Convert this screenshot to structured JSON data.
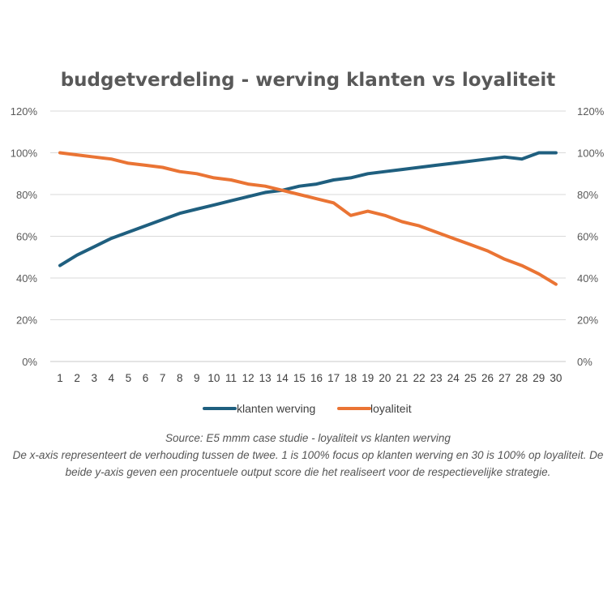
{
  "chart_data": {
    "type": "line",
    "title": "budgetverdeling - werving klanten vs loyaliteit",
    "categories": [
      "1",
      "2",
      "3",
      "4",
      "5",
      "6",
      "7",
      "8",
      "9",
      "10",
      "11",
      "12",
      "13",
      "14",
      "15",
      "16",
      "17",
      "18",
      "19",
      "20",
      "21",
      "22",
      "23",
      "24",
      "25",
      "26",
      "27",
      "28",
      "29",
      "30"
    ],
    "y_ticks": [
      "0%",
      "20%",
      "40%",
      "60%",
      "80%",
      "100%",
      "120%"
    ],
    "ylim": [
      0,
      120
    ],
    "grid": true,
    "legend_position": "bottom",
    "series": [
      {
        "name": "klanten werving",
        "color": "#1f5f7f",
        "values": [
          46,
          51,
          55,
          59,
          62,
          65,
          68,
          71,
          73,
          75,
          77,
          79,
          81,
          82,
          84,
          85,
          87,
          88,
          90,
          91,
          92,
          93,
          94,
          95,
          96,
          97,
          98,
          97,
          100,
          100
        ]
      },
      {
        "name": "loyaliteit",
        "color": "#ea7434",
        "values": [
          100,
          99,
          98,
          97,
          95,
          94,
          93,
          91,
          90,
          88,
          87,
          85,
          84,
          82,
          80,
          78,
          76,
          70,
          72,
          70,
          67,
          65,
          62,
          59,
          56,
          53,
          49,
          46,
          42,
          37
        ]
      }
    ]
  },
  "caption": {
    "source": "Source: E5 mmm case studie - loyaliteit vs klanten werving",
    "description": "De x-axis representeert de verhouding tussen de twee. 1 is 100% focus op klanten werving en 30 is 100% op loyaliteit. De beide y-axis geven een procentuele output score die het realiseert voor de respectievelijke strategie."
  }
}
